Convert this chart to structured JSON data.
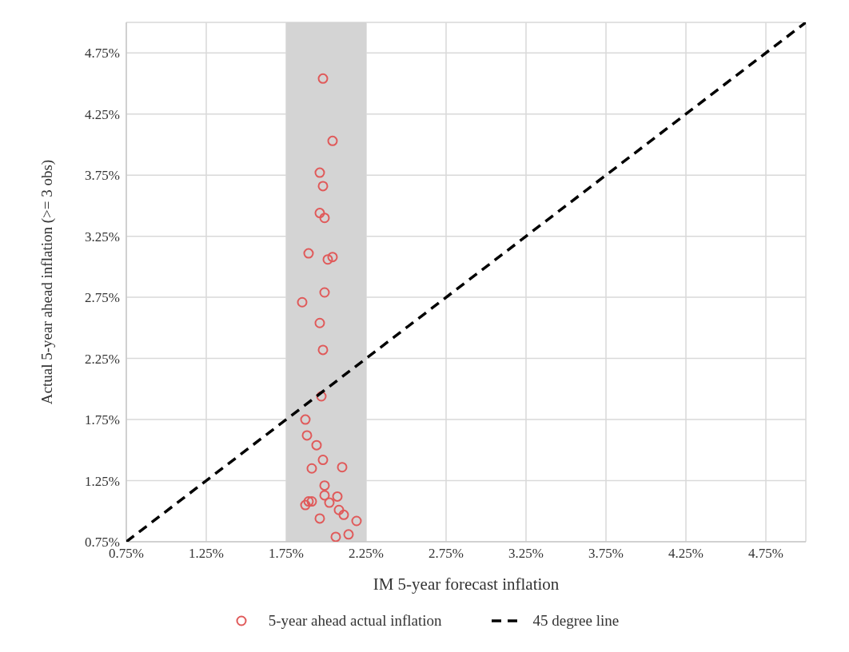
{
  "chart_data": {
    "type": "scatter",
    "xlabel": "IM 5-year forecast inflation",
    "ylabel": "Actual 5-year ahead inflation (>= 3 obs)",
    "xlim": [
      0.75,
      5.0
    ],
    "ylim": [
      0.75,
      5.0
    ],
    "xticks": [
      {
        "value": 0.75,
        "label": "0.75%"
      },
      {
        "value": 1.25,
        "label": "1.25%"
      },
      {
        "value": 1.75,
        "label": "1.75%"
      },
      {
        "value": 2.25,
        "label": "2.25%"
      },
      {
        "value": 2.75,
        "label": "2.75%"
      },
      {
        "value": 3.25,
        "label": "3.25%"
      },
      {
        "value": 3.75,
        "label": "3.75%"
      },
      {
        "value": 4.25,
        "label": "4.25%"
      },
      {
        "value": 4.75,
        "label": "4.75%"
      }
    ],
    "yticks": [
      {
        "value": 0.75,
        "label": "0.75%"
      },
      {
        "value": 1.25,
        "label": "1.25%"
      },
      {
        "value": 1.75,
        "label": "1.75%"
      },
      {
        "value": 2.25,
        "label": "2.25%"
      },
      {
        "value": 2.75,
        "label": "2.75%"
      },
      {
        "value": 3.25,
        "label": "3.25%"
      },
      {
        "value": 3.75,
        "label": "3.75%"
      },
      {
        "value": 4.25,
        "label": "4.25%"
      },
      {
        "value": 4.75,
        "label": "4.75%"
      }
    ],
    "grid": true,
    "legend": "bottom",
    "bands": [
      {
        "axis": "x",
        "from": 1.75,
        "to": 2.25,
        "color": "#d4d4d4"
      }
    ],
    "series": [
      {
        "name": "5-year ahead actual inflation",
        "color": "#e05a5a",
        "marker": "circle",
        "x": [
          1.98,
          2.04,
          1.96,
          1.98,
          1.96,
          1.99,
          1.89,
          2.04,
          2.01,
          1.99,
          1.85,
          1.96,
          1.98,
          1.97,
          1.87,
          1.88,
          1.94,
          1.98,
          1.91,
          2.1,
          1.99,
          1.99,
          2.07,
          1.89,
          1.91,
          1.87,
          2.02,
          2.08,
          2.11,
          1.96,
          2.19,
          2.14,
          2.06
        ],
        "values": [
          4.54,
          4.03,
          3.77,
          3.66,
          3.44,
          3.4,
          3.11,
          3.08,
          3.06,
          2.79,
          2.71,
          2.54,
          2.32,
          1.94,
          1.75,
          1.62,
          1.54,
          1.42,
          1.35,
          1.36,
          1.21,
          1.13,
          1.12,
          1.08,
          1.08,
          1.05,
          1.07,
          1.01,
          0.97,
          0.94,
          0.92,
          0.81,
          0.79
        ]
      },
      {
        "name": "45 degree line",
        "type": "line",
        "color": "#000000",
        "line_style": "dashed",
        "marker": "none",
        "x": [
          0.75,
          5.0
        ],
        "values": [
          0.75,
          5.0
        ]
      }
    ]
  }
}
